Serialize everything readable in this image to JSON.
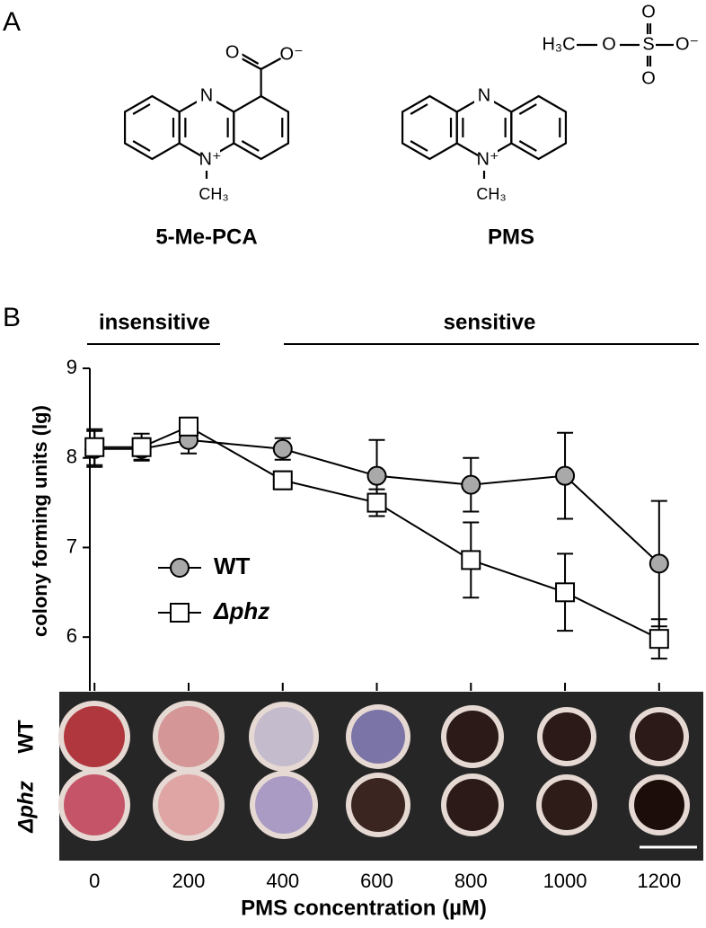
{
  "panels": [
    "A",
    "B"
  ],
  "structures": [
    {
      "name": "5-Me-PCA",
      "atoms": [
        "N",
        "N⁺",
        "CH₃",
        "O",
        "O⁻"
      ]
    },
    {
      "name": "PMS",
      "atoms": [
        "N",
        "N⁺",
        "CH₃",
        "H₃C",
        "O",
        "S",
        "O⁻",
        "O",
        "O"
      ]
    }
  ],
  "regions": [
    "insensitive",
    "sensitive"
  ],
  "plates": {
    "rows": [
      "WT",
      "Δphz"
    ]
  },
  "chart_data": {
    "type": "line",
    "ylabel": "colony forming units (lg)",
    "xlabel": "PMS concentration (µM)",
    "x": [
      0,
      100,
      200,
      400,
      600,
      800,
      1000,
      1200
    ],
    "xlim": [
      -10,
      1250
    ],
    "xticks": [
      0,
      200,
      400,
      600,
      800,
      1000,
      1200
    ],
    "ylim": [
      5.4,
      9
    ],
    "yticks": [
      6,
      7,
      8,
      9
    ],
    "series": [
      {
        "name": "WT",
        "marker": "circle",
        "color": "#a9a9a9",
        "values": [
          8.1,
          8.1,
          8.2,
          8.1,
          7.8,
          7.7,
          7.8,
          6.82
        ],
        "errors": [
          0.2,
          0.12,
          0.15,
          0.12,
          0.4,
          0.3,
          0.48,
          0.7
        ]
      },
      {
        "name": "Δphz",
        "marker": "square",
        "color": "#ffffff",
        "values": [
          8.12,
          8.12,
          8.35,
          7.75,
          7.5,
          6.86,
          6.5,
          5.98
        ],
        "errors": [
          0.2,
          0.15,
          0.1,
          0.1,
          0.15,
          0.42,
          0.43,
          0.22
        ]
      }
    ]
  }
}
